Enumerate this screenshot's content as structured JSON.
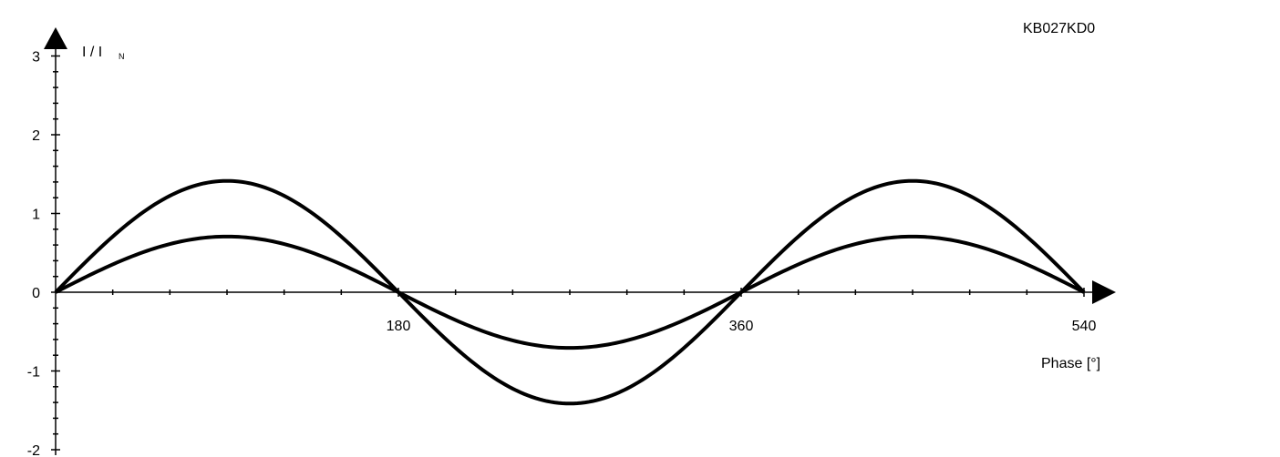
{
  "figure_code": "KB027KD0",
  "chart_data": {
    "type": "line",
    "xlabel": "Phase [°]",
    "ylabel": "I / I",
    "ylabel_sub": "N",
    "xlim": [
      0,
      540
    ],
    "ylim": [
      -2,
      3
    ],
    "x_ticks": [
      {
        "value": 180,
        "label": "180"
      },
      {
        "value": 360,
        "label": "360"
      },
      {
        "value": 540,
        "label": "540"
      }
    ],
    "y_ticks": [
      {
        "value": 3,
        "label": "3"
      },
      {
        "value": 2,
        "label": "2"
      },
      {
        "value": 1,
        "label": "1"
      },
      {
        "value": 0,
        "label": "0"
      },
      {
        "value": -1,
        "label": "-1"
      },
      {
        "value": -2,
        "label": "-2"
      }
    ],
    "x_minor_step": 30,
    "y_minor_step": 0.2,
    "grid": false,
    "series": [
      {
        "amplitude": 1.414,
        "function": "sine",
        "x": [
          0,
          90,
          180,
          270,
          360,
          450,
          540
        ],
        "values": [
          0,
          1.414,
          0,
          -1.414,
          0,
          1.414,
          0
        ]
      },
      {
        "amplitude": 0.707,
        "function": "sine",
        "x": [
          0,
          90,
          180,
          270,
          360,
          450,
          540
        ],
        "values": [
          0,
          0.707,
          0,
          -0.707,
          0,
          0.707,
          0
        ]
      }
    ]
  }
}
